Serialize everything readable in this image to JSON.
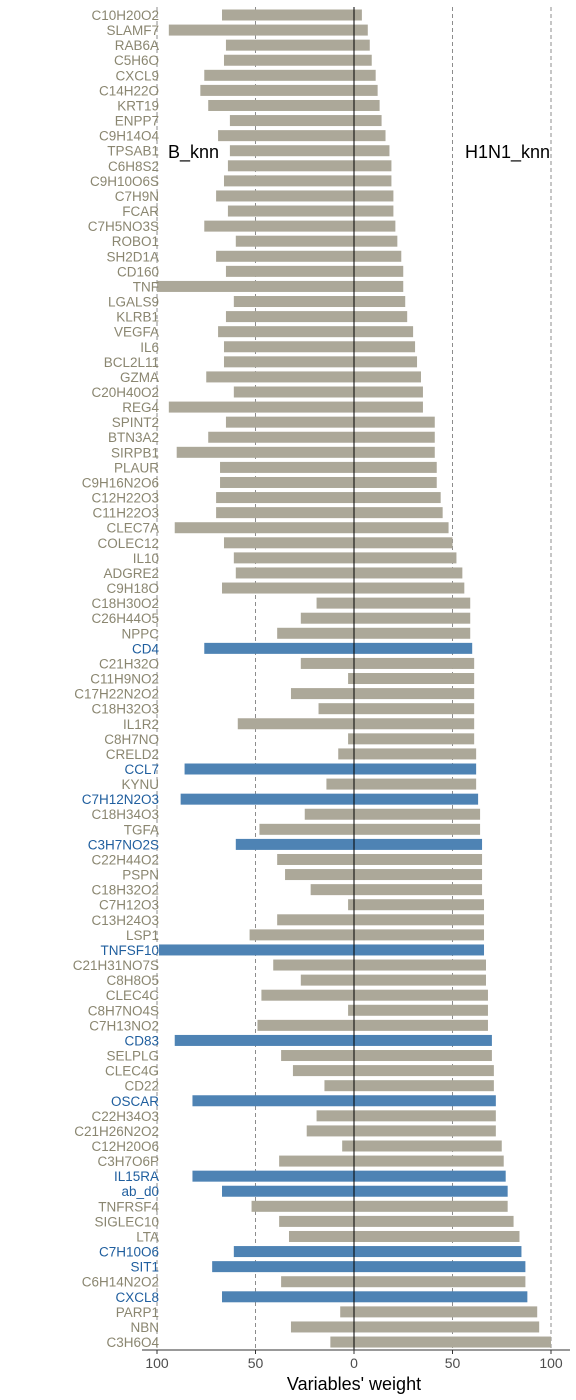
{
  "chart_data": {
    "type": "bar",
    "orientation": "horizontal",
    "mirrored": true,
    "xlabel": "Variables' weight",
    "xticks": [
      "100",
      "50",
      "0",
      "50",
      "100"
    ],
    "xlim": [
      -100,
      100
    ],
    "left_label": "B_knn",
    "right_label": "H1N1_knn",
    "colors": {
      "gray": "#aca899",
      "blue": "#4e83b4",
      "gray_text": "#8a8670",
      "blue_text": "#1f5e9e",
      "guide": "#8c8c8c"
    },
    "grid": false,
    "categories": [
      "C10H20O2",
      "SLAMF7",
      "RAB6A",
      "C5H6O",
      "CXCL9",
      "C14H22O",
      "KRT19",
      "ENPP7",
      "C9H14O4",
      "TPSAB1",
      "C6H8S2",
      "C9H10O6S",
      "C7H9N",
      "FCAR",
      "C7H5NO3S",
      "ROBO1",
      "SH2D1A",
      "CD160",
      "TNF",
      "LGALS9",
      "KLRB1",
      "VEGFA",
      "IL6",
      "BCL2L11",
      "GZMA",
      "C20H40O2",
      "REG4",
      "SPINT2",
      "BTN3A2",
      "SIRPB1",
      "PLAUR",
      "C9H16N2O6",
      "C12H22O3",
      "C11H22O3",
      "CLEC7A",
      "COLEC12",
      "IL10",
      "ADGRE2",
      "C9H18O",
      "C18H30O2",
      "C26H44O5",
      "NPPC",
      "CD4",
      "C21H32O",
      "C11H9NO2",
      "C17H22N2O2",
      "C18H32O3",
      "IL1R2",
      "C8H7NO",
      "CRELD2",
      "CCL7",
      "KYNU",
      "C7H12N2O3",
      "C18H34O3",
      "TGFA",
      "C3H7NO2S",
      "C22H44O2",
      "PSPN",
      "C18H32O2",
      "C7H12O3",
      "C13H24O3",
      "LSP1",
      "TNFSF10",
      "C21H31NO7S",
      "C8H8O5",
      "CLEC4C",
      "C8H7NO4S",
      "C7H13NO2",
      "CD83",
      "SELPLG",
      "CLEC4G",
      "CD22",
      "OSCAR",
      "C22H34O3",
      "C21H26N2O2",
      "C12H20O6",
      "C3H7O6P",
      "IL15RA",
      "ab_d0",
      "TNFRSF4",
      "SIGLEC10",
      "LTA",
      "C7H10O6",
      "SIT1",
      "C6H14N2O2",
      "CXCL8",
      "PARP1",
      "NBN",
      "C3H6O4"
    ],
    "left_values": [
      67,
      94,
      65,
      66,
      76,
      78,
      74,
      63,
      69,
      63,
      64,
      66,
      70,
      64,
      76,
      60,
      70,
      65,
      100,
      61,
      65,
      69,
      66,
      66,
      75,
      61,
      94,
      65,
      74,
      90,
      68,
      68,
      70,
      70,
      91,
      66,
      61,
      60,
      67,
      19,
      27,
      39,
      76,
      27,
      3,
      32,
      18,
      59,
      3,
      8,
      86,
      14,
      88,
      25,
      48,
      60,
      39,
      35,
      22,
      3,
      39,
      53,
      99,
      41,
      27,
      47,
      3,
      49,
      91,
      37,
      31,
      15,
      82,
      19,
      24,
      6,
      38,
      82,
      67,
      52,
      38,
      33,
      61,
      72,
      37,
      67,
      7,
      32,
      12
    ],
    "right_values": [
      4,
      7,
      8,
      9,
      11,
      12,
      13,
      14,
      16,
      18,
      19,
      19,
      20,
      20,
      21,
      22,
      24,
      25,
      25,
      26,
      27,
      30,
      31,
      32,
      34,
      35,
      35,
      41,
      41,
      41,
      42,
      42,
      44,
      45,
      48,
      50,
      52,
      55,
      56,
      59,
      59,
      59,
      60,
      61,
      61,
      61,
      61,
      61,
      61,
      62,
      62,
      62,
      63,
      64,
      64,
      65,
      65,
      65,
      65,
      66,
      66,
      66,
      66,
      67,
      67,
      68,
      68,
      68,
      70,
      70,
      71,
      71,
      72,
      72,
      72,
      75,
      76,
      77,
      78,
      78,
      81,
      84,
      85,
      87,
      87,
      88,
      93,
      94,
      100
    ],
    "highlight": [
      false,
      false,
      false,
      false,
      false,
      false,
      false,
      false,
      false,
      false,
      false,
      false,
      false,
      false,
      false,
      false,
      false,
      false,
      false,
      false,
      false,
      false,
      false,
      false,
      false,
      false,
      false,
      false,
      false,
      false,
      false,
      false,
      false,
      false,
      false,
      false,
      false,
      false,
      false,
      false,
      false,
      false,
      true,
      false,
      false,
      false,
      false,
      false,
      false,
      false,
      true,
      false,
      true,
      false,
      false,
      true,
      false,
      false,
      false,
      false,
      false,
      false,
      true,
      false,
      false,
      false,
      false,
      false,
      true,
      false,
      false,
      false,
      true,
      false,
      false,
      false,
      false,
      true,
      true,
      false,
      false,
      false,
      true,
      true,
      false,
      true,
      false,
      false,
      false
    ]
  }
}
